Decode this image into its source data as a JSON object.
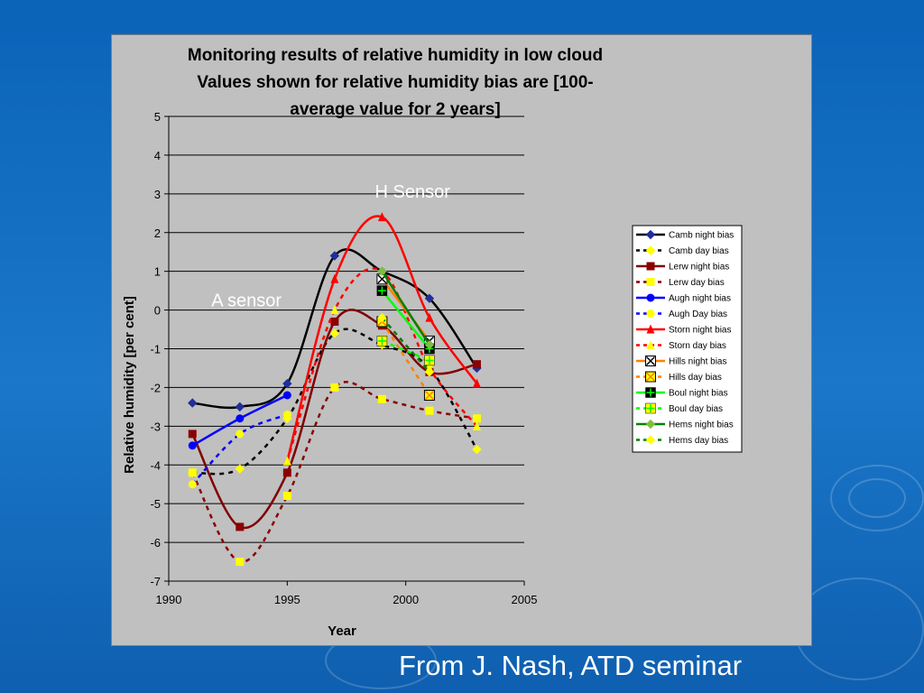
{
  "footer": {
    "caption": "From J. Nash, ATD seminar"
  },
  "chart_data": {
    "type": "line",
    "title_lines": [
      "Monitoring results of relative humidity in low cloud",
      "Values shown for relative humidity bias are [100-",
      "average value for 2 years]"
    ],
    "xlabel": "Year",
    "ylabel": "Relative humidity [per cent]",
    "xlim": [
      1990,
      2005
    ],
    "ylim": [
      -7,
      5
    ],
    "x_ticks": [
      1990,
      1995,
      2000,
      2005
    ],
    "y_ticks": [
      5,
      4,
      3,
      2,
      1,
      0,
      -1,
      -2,
      -3,
      -4,
      -5,
      -6,
      -7
    ],
    "grid": "horizontal",
    "legend_position": "right",
    "annotations": [
      {
        "text": "H Sensor",
        "x": 1998.7,
        "y": 2.9,
        "color": "#ffffff"
      },
      {
        "text": "A sensor",
        "x": 1991.8,
        "y": 0.1,
        "color": "#ffffff"
      }
    ],
    "series": [
      {
        "name": "Camb night bias",
        "color": "#000000",
        "dash": false,
        "marker": "diamond",
        "marker_color": "#1f2f99",
        "x": [
          1991,
          1993,
          1995,
          1997,
          1999,
          2001,
          2003
        ],
        "y": [
          -2.4,
          -2.5,
          -1.9,
          1.4,
          1.0,
          0.3,
          -1.5
        ]
      },
      {
        "name": "Camb day bias",
        "color": "#000000",
        "dash": true,
        "marker": "diamond",
        "marker_color": "#ffff00",
        "x": [
          1991,
          1993,
          1995,
          1997,
          1999,
          2001,
          2003
        ],
        "y": [
          -4.2,
          -4.1,
          -2.8,
          -0.6,
          -0.9,
          -1.5,
          -3.6
        ]
      },
      {
        "name": "Lerw night bias",
        "color": "#800000",
        "dash": false,
        "marker": "square",
        "marker_color": "#8b0000",
        "x": [
          1991,
          1993,
          1995,
          1997,
          1999,
          2001,
          2003
        ],
        "y": [
          -3.2,
          -5.6,
          -4.2,
          -0.3,
          -0.4,
          -1.6,
          -1.4
        ]
      },
      {
        "name": "Lerw day bias",
        "color": "#8b0000",
        "dash": true,
        "marker": "square",
        "marker_color": "#ffff00",
        "x": [
          1991,
          1993,
          1995,
          1997,
          1999,
          2001,
          2003
        ],
        "y": [
          -4.2,
          -6.5,
          -4.8,
          -2.0,
          -2.3,
          -2.6,
          -2.8
        ]
      },
      {
        "name": "Augh night  bias",
        "color": "#0000ff",
        "dash": false,
        "marker": "circle",
        "marker_color": "#0000ff",
        "x": [
          1991,
          1993,
          1995
        ],
        "y": [
          -3.5,
          -2.8,
          -2.2
        ]
      },
      {
        "name": "Augh Day bias",
        "color": "#0000ff",
        "dash": true,
        "marker": "circle",
        "marker_color": "#ffff00",
        "x": [
          1991,
          1993,
          1995
        ],
        "y": [
          -4.5,
          -3.2,
          -2.7
        ]
      },
      {
        "name": "Storn night bias",
        "color": "#ff0000",
        "dash": false,
        "marker": "triangle",
        "marker_color": "#ff0000",
        "x": [
          1995,
          1997,
          1999,
          2001,
          2003
        ],
        "y": [
          -3.9,
          0.8,
          2.4,
          -0.2,
          -1.9
        ]
      },
      {
        "name": "Storn day bias",
        "color": "#ff0000",
        "dash": true,
        "marker": "triangle",
        "marker_color": "#ffff00",
        "x": [
          1995,
          1997,
          1999,
          2001,
          2003
        ],
        "y": [
          -3.9,
          0.0,
          1.0,
          -1.5,
          -3.0
        ]
      },
      {
        "name": "Hills night bias",
        "color": "#ff8000",
        "dash": false,
        "marker": "xsquare",
        "marker_color": "#000000",
        "x": [
          1999,
          2001
        ],
        "y": [
          0.8,
          -0.8
        ]
      },
      {
        "name": "Hills day bias",
        "color": "#ff8000",
        "dash": true,
        "marker": "xsquare",
        "marker_color": "#ffff00",
        "x": [
          1999,
          2001
        ],
        "y": [
          -0.3,
          -2.2
        ]
      },
      {
        "name": "Boul night bias",
        "color": "#00ff00",
        "dash": false,
        "marker": "plussquare",
        "marker_color": "#000000",
        "x": [
          1999,
          2001
        ],
        "y": [
          0.5,
          -1.0
        ]
      },
      {
        "name": "Boul day  bias",
        "color": "#00ff00",
        "dash": true,
        "marker": "plussquare",
        "marker_color": "#ffff00",
        "x": [
          1999,
          2001
        ],
        "y": [
          -0.8,
          -1.3
        ]
      },
      {
        "name": "Hems night bias",
        "color": "#008000",
        "dash": false,
        "marker": "diamond",
        "marker_color": "#7fbf3f",
        "x": [
          1999,
          2001
        ],
        "y": [
          1.0,
          -0.9
        ]
      },
      {
        "name": "Hems day bias",
        "color": "#008000",
        "dash": true,
        "marker": "diamond",
        "marker_color": "#ffff00",
        "x": [
          1999,
          2001
        ],
        "y": [
          -0.2,
          -1.6
        ]
      }
    ]
  }
}
